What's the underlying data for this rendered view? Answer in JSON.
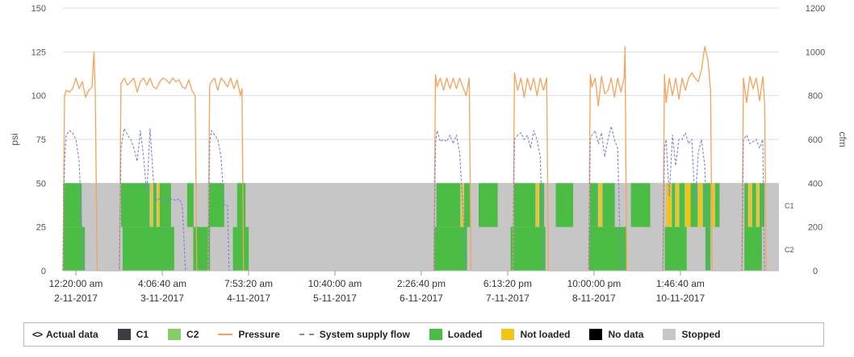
{
  "colors": {
    "pressure": "#f6a25a",
    "flow": "#7a82d8",
    "loaded": "#4bbd45",
    "not_loaded": "#f3c316",
    "no_data": "#000000",
    "stopped": "#c6c6c6",
    "c1": "#3c3c44",
    "c2": "#86cf66",
    "grid": "#dcdcdc",
    "dropline": "#e46a5e"
  },
  "legend": {
    "actual": "Actual data",
    "c1": "C1",
    "c2": "C2",
    "pressure": "Pressure",
    "flow": "System supply flow",
    "loaded": "Loaded",
    "not_loaded": "Not loaded",
    "no_data": "No data",
    "stopped": "Stopped"
  },
  "chart_data": {
    "type": "line",
    "x_unit": "hours since first axis tick",
    "xlim": [
      -4,
      218
    ],
    "ylabel_left": "psi",
    "ylabel_right": "cfm",
    "ylim_left": [
      0,
      150
    ],
    "ylim_right": [
      0,
      1200
    ],
    "yticks_left": [
      0,
      25,
      50,
      75,
      100,
      125,
      150
    ],
    "yticks_right": [
      0,
      200,
      400,
      600,
      800,
      1000,
      1200
    ],
    "grid": true,
    "legend_position": "bottom",
    "xticks": [
      {
        "x": 0,
        "time": "12:20:00 am",
        "date": "2-11-2017"
      },
      {
        "x": 26.78,
        "time": "4:06:40 am",
        "date": "3-11-2017"
      },
      {
        "x": 53.56,
        "time": "7:53:20 am",
        "date": "4-11-2017"
      },
      {
        "x": 80.33,
        "time": "10:40:00 am",
        "date": "5-11-2017"
      },
      {
        "x": 107.11,
        "time": "2:26:40 pm",
        "date": "6-11-2017"
      },
      {
        "x": 133.89,
        "time": "6:13:20 pm",
        "date": "7-11-2017"
      },
      {
        "x": 160.67,
        "time": "10:00:00 pm",
        "date": "8-11-2017"
      },
      {
        "x": 187.44,
        "time": "1:46:40 am",
        "date": "10-11-2017"
      }
    ],
    "compressor_labels": [
      "C1",
      "C2"
    ],
    "compressor_c1": [
      {
        "start": -4,
        "end": 1.8,
        "state": "loaded"
      },
      {
        "start": 14,
        "end": 22.9,
        "state": "loaded"
      },
      {
        "start": 23.2,
        "end": 23.8,
        "state": "not_loaded"
      },
      {
        "start": 24,
        "end": 25,
        "state": "loaded"
      },
      {
        "start": 25.3,
        "end": 26,
        "state": "not_loaded"
      },
      {
        "start": 26,
        "end": 29.5,
        "state": "loaded"
      },
      {
        "start": 34.5,
        "end": 36.5,
        "state": "loaded"
      },
      {
        "start": 41,
        "end": 46,
        "state": "loaded"
      },
      {
        "start": 50,
        "end": 52.6,
        "state": "loaded"
      },
      {
        "start": 111.8,
        "end": 119.2,
        "state": "loaded"
      },
      {
        "start": 119.5,
        "end": 120.2,
        "state": "not_loaded"
      },
      {
        "start": 120.4,
        "end": 122.4,
        "state": "loaded"
      },
      {
        "start": 124.9,
        "end": 130.8,
        "state": "loaded"
      },
      {
        "start": 135.9,
        "end": 142.5,
        "state": "loaded"
      },
      {
        "start": 142.7,
        "end": 143.5,
        "state": "not_loaded"
      },
      {
        "start": 143.7,
        "end": 145.2,
        "state": "loaded"
      },
      {
        "start": 148.8,
        "end": 154.2,
        "state": "loaded"
      },
      {
        "start": 159.4,
        "end": 161.9,
        "state": "loaded"
      },
      {
        "start": 162.2,
        "end": 163.1,
        "state": "not_loaded"
      },
      {
        "start": 163.3,
        "end": 167.1,
        "state": "loaded"
      },
      {
        "start": 172.1,
        "end": 178.1,
        "state": "loaded"
      },
      {
        "start": 183.1,
        "end": 184.6,
        "state": "not_loaded"
      },
      {
        "start": 184.8,
        "end": 185.8,
        "state": "loaded"
      },
      {
        "start": 186,
        "end": 186.9,
        "state": "not_loaded"
      },
      {
        "start": 187.1,
        "end": 188.8,
        "state": "loaded"
      },
      {
        "start": 189,
        "end": 190.6,
        "state": "not_loaded"
      },
      {
        "start": 190.6,
        "end": 192.8,
        "state": "loaded"
      },
      {
        "start": 193,
        "end": 194.2,
        "state": "not_loaded"
      },
      {
        "start": 194.4,
        "end": 196.8,
        "state": "loaded"
      },
      {
        "start": 197,
        "end": 198,
        "state": "not_loaded"
      },
      {
        "start": 198.2,
        "end": 199.6,
        "state": "loaded"
      },
      {
        "start": 207.3,
        "end": 208.4,
        "state": "loaded"
      },
      {
        "start": 208.6,
        "end": 209.5,
        "state": "not_loaded"
      },
      {
        "start": 209.7,
        "end": 210.9,
        "state": "loaded"
      },
      {
        "start": 211.1,
        "end": 211.8,
        "state": "not_loaded"
      },
      {
        "start": 212,
        "end": 213.5,
        "state": "loaded"
      }
    ],
    "compressor_c2": [
      {
        "start": -4,
        "end": 2.8,
        "state": "loaded"
      },
      {
        "start": 14.5,
        "end": 30.5,
        "state": "loaded"
      },
      {
        "start": 36.4,
        "end": 41.6,
        "state": "loaded"
      },
      {
        "start": 48.7,
        "end": 53.6,
        "state": "loaded"
      },
      {
        "start": 111.2,
        "end": 121.3,
        "state": "loaded"
      },
      {
        "start": 134.8,
        "end": 145.6,
        "state": "loaded"
      },
      {
        "start": 159.2,
        "end": 170.6,
        "state": "loaded"
      },
      {
        "start": 182.6,
        "end": 189.4,
        "state": "loaded"
      },
      {
        "start": 195.2,
        "end": 196.8,
        "state": "loaded"
      },
      {
        "start": 207.3,
        "end": 212.7,
        "state": "loaded"
      }
    ],
    "series": [
      {
        "name": "Pressure",
        "axis": "left",
        "x": [
          -4,
          -3.5,
          -3,
          -2,
          -1,
          0,
          1,
          2,
          3,
          4,
          5,
          5.6,
          6,
          6.6,
          13.5,
          14,
          15,
          16,
          17,
          18,
          19,
          20,
          21,
          22,
          23,
          24,
          25,
          26,
          27,
          28,
          29,
          30,
          31,
          32,
          33,
          34,
          35,
          36,
          37,
          37.5,
          41,
          41.5,
          42,
          43,
          44,
          45,
          46,
          47,
          48,
          49,
          50,
          51,
          51.5,
          52,
          111,
          111.5,
          112,
          113,
          114,
          115,
          116,
          117,
          118,
          119,
          120,
          121,
          122,
          122.5,
          135.5,
          136,
          137,
          138,
          139,
          140,
          141,
          142,
          143,
          144,
          145,
          146,
          146.5,
          159,
          159.5,
          160,
          161,
          162,
          163,
          164,
          165,
          166,
          167,
          168,
          169,
          170,
          170.3,
          170.8,
          182,
          182.5,
          183,
          184,
          185,
          186,
          187,
          188,
          189,
          190,
          191,
          192,
          193,
          194,
          195,
          196,
          196.8,
          197.3,
          206.5,
          207,
          208,
          209,
          210,
          211,
          212,
          213,
          213.6,
          214
        ],
        "y": [
          0,
          100,
          103,
          102,
          104,
          110,
          104,
          108,
          99,
          103,
          105,
          125,
          103,
          0,
          0,
          107,
          110,
          106,
          108,
          110,
          102,
          108,
          110,
          106,
          110,
          105,
          104,
          108,
          110,
          109,
          107,
          110,
          108,
          109,
          105,
          104,
          109,
          103,
          100,
          0,
          0,
          106,
          108,
          110,
          103,
          110,
          108,
          105,
          110,
          104,
          109,
          100,
          104,
          0,
          0,
          112,
          105,
          110,
          103,
          110,
          104,
          110,
          104,
          110,
          105,
          100,
          110,
          0,
          0,
          113,
          103,
          110,
          99,
          110,
          103,
          110,
          100,
          110,
          103,
          110,
          0,
          0,
          112,
          105,
          110,
          94,
          111,
          101,
          103,
          110,
          99,
          110,
          102,
          110,
          128,
          0,
          0,
          112,
          96,
          110,
          100,
          110,
          98,
          110,
          103,
          110,
          113,
          110,
          108,
          115,
          128,
          120,
          103,
          0,
          0,
          110,
          96,
          111,
          104,
          110,
          97,
          111,
          95,
          0
        ]
      },
      {
        "name": "System supply flow",
        "axis": "right",
        "x": [
          -4,
          -3.5,
          -3,
          -2,
          -1,
          0,
          1,
          1.6,
          2.2,
          13.5,
          14,
          15,
          16,
          17,
          18,
          19,
          20,
          21,
          22,
          23,
          24,
          25,
          26,
          27,
          28,
          29,
          30,
          31,
          32,
          33,
          34,
          41,
          41.5,
          42,
          43,
          44,
          45,
          46,
          47,
          47.5,
          111,
          111.5,
          112,
          113,
          114,
          115,
          116,
          117,
          118,
          119,
          120,
          121,
          135.5,
          136,
          137,
          138,
          139,
          140,
          141,
          142,
          143,
          144,
          145,
          159,
          159.5,
          160,
          161,
          162,
          163,
          164,
          165,
          166,
          167,
          168,
          169,
          182,
          182.5,
          183,
          184,
          185,
          186,
          187,
          188,
          189,
          190,
          191,
          192,
          193,
          194,
          195,
          196,
          206.5,
          207,
          208,
          209,
          210,
          211,
          212,
          213,
          213.5
        ],
        "y": [
          0,
          500,
          620,
          640,
          630,
          600,
          500,
          300,
          0,
          0,
          560,
          650,
          620,
          600,
          560,
          500,
          640,
          520,
          350,
          650,
          420,
          320,
          330,
          330,
          310,
          320,
          330,
          320,
          330,
          300,
          0,
          0,
          580,
          640,
          620,
          600,
          520,
          300,
          300,
          0,
          0,
          580,
          640,
          590,
          600,
          590,
          620,
          580,
          620,
          540,
          300,
          0,
          0,
          600,
          620,
          630,
          600,
          620,
          560,
          640,
          600,
          520,
          0,
          0,
          600,
          620,
          640,
          580,
          630,
          520,
          600,
          660,
          600,
          560,
          0,
          0,
          560,
          600,
          340,
          620,
          480,
          600,
          600,
          630,
          580,
          600,
          300,
          540,
          600,
          480,
          0,
          0,
          600,
          620,
          580,
          590,
          600,
          560,
          600,
          0
        ]
      }
    ]
  }
}
